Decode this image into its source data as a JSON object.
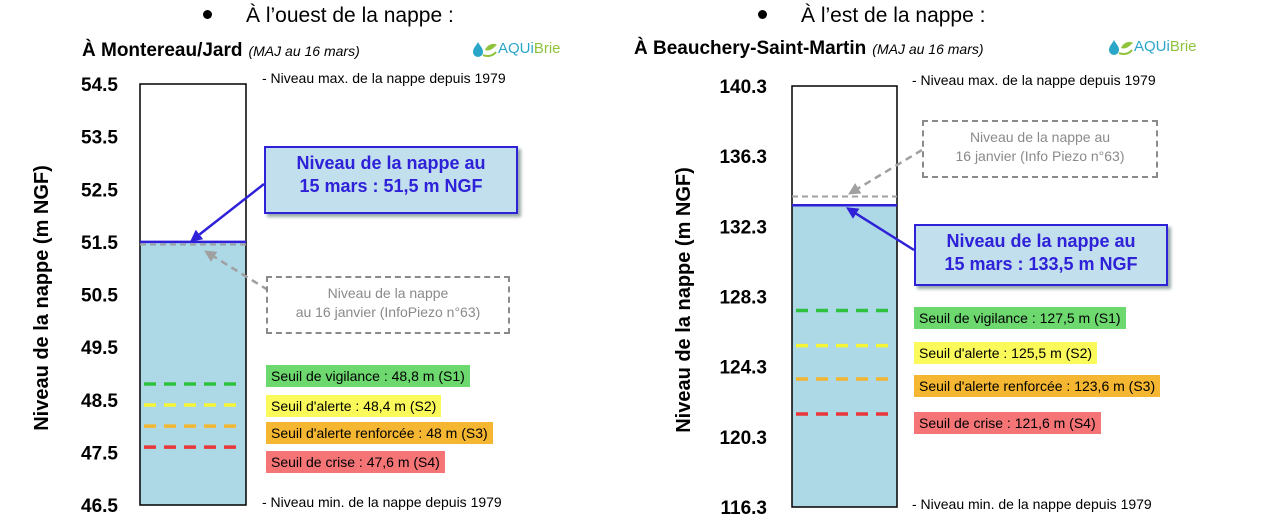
{
  "colors": {
    "water": "#add8e6",
    "level_line": "#2e21d8",
    "s1": "#2ec13e",
    "s2": "#f5f538",
    "s3": "#f2b632",
    "s4": "#e8373a",
    "s1_bg": "#6cd86e",
    "s2_bg": "#fafa5a",
    "s3_bg": "#f5b731",
    "s4_bg": "#f57577",
    "previous_line": "#a0a0a0"
  },
  "logo": {
    "part1": "AQUi",
    "part2": "Brie"
  },
  "left": {
    "heading": "À l’ouest de la nappe :",
    "station": "À Montereau/Jard",
    "maj": "(MAJ au 16 mars)",
    "ylabel": "Niveau de la nappe (m NGF)",
    "max_note": "- Niveau max. de la nappe depuis 1979",
    "min_note": "- Niveau min. de la nappe depuis 1979",
    "level_box": [
      "Niveau de la nappe au",
      "15 mars : 51,5 m NGF"
    ],
    "jan_box": [
      "Niveau de la nappe",
      "au 16 janvier (InfoPiezo n°63)"
    ],
    "thresholds": [
      "Seuil de vigilance : 48,8 m (S1)",
      "Seuil d'alerte : 48,4 m (S2)",
      "Seuil d'alerte renforcée : 48 m (S3)",
      "Seuil de crise : 47,6 m (S4)"
    ]
  },
  "right": {
    "heading": "À l’est de la nappe :",
    "station": "À Beauchery-Saint-Martin",
    "maj": "(MAJ au 16 mars)",
    "ylabel": "Niveau de la nappe (m NGF)",
    "max_note": "- Niveau max. de la nappe depuis 1979",
    "min_note": "- Niveau min. de la nappe depuis 1979",
    "level_box": [
      "Niveau de la nappe au",
      "15 mars : 133,5 m NGF"
    ],
    "jan_box": [
      "Niveau de la nappe au",
      "16 janvier (Info Piezo n°63)"
    ],
    "thresholds": [
      "Seuil de vigilance : 127,5 m (S1)",
      "Seuil d'alerte : 125,5 m (S2)",
      "Seuil d'alerte renforcée : 123,6 m (S3)",
      "Seuil de crise : 121,6 m (S4)"
    ]
  },
  "chart_data": [
    {
      "type": "bar",
      "ylabel": "Niveau de la nappe (m NGF)",
      "ylim": [
        46.5,
        54.5
      ],
      "ticks": [
        "54.5",
        "53.5",
        "52.5",
        "51.5",
        "50.5",
        "49.5",
        "48.5",
        "47.5",
        "46.5"
      ],
      "current_level": 51.5,
      "january_level": 51.45,
      "historic_max": 54.5,
      "historic_min": 46.5,
      "thresholds": [
        48.8,
        48.4,
        48.0,
        47.6
      ]
    },
    {
      "type": "bar",
      "ylabel": "Niveau de la nappe (m NGF)",
      "ylim": [
        116.3,
        140.3
      ],
      "ticks": [
        "140.3",
        "136.3",
        "132.3",
        "128.3",
        "124.3",
        "120.3",
        "116.3"
      ],
      "current_level": 133.5,
      "january_level": 134.0,
      "historic_max": 140.3,
      "historic_min": 116.3,
      "thresholds": [
        127.5,
        125.5,
        123.6,
        121.6
      ]
    }
  ]
}
